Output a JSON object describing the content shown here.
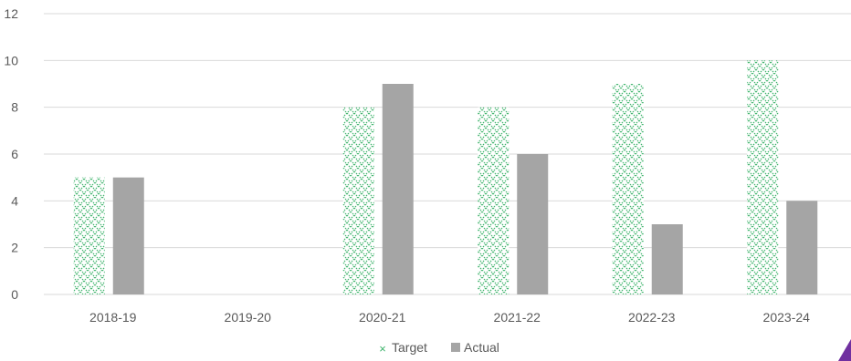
{
  "chart_data": {
    "type": "bar",
    "categories": [
      "2018-19",
      "2019-20",
      "2020-21",
      "2021-22",
      "2022-23",
      "2023-24"
    ],
    "series": [
      {
        "name": "Target",
        "values": [
          5,
          null,
          8,
          8,
          9,
          10
        ],
        "color": "#3db36b",
        "fill": "cross-hatch"
      },
      {
        "name": "Actual",
        "values": [
          5,
          null,
          9,
          6,
          3,
          4
        ],
        "color": "#a5a5a5",
        "fill": "solid"
      }
    ],
    "y_ticks": [
      "0",
      "2",
      "4",
      "6",
      "8",
      "10",
      "12"
    ],
    "ylim": [
      0,
      12
    ],
    "grid": true,
    "legend_position": "bottom",
    "title": "",
    "xlabel": "",
    "ylabel": ""
  },
  "colors": {
    "gridline": "#d9d9d9",
    "axis_text": "#595959",
    "corner_accent": "#7030a0"
  }
}
